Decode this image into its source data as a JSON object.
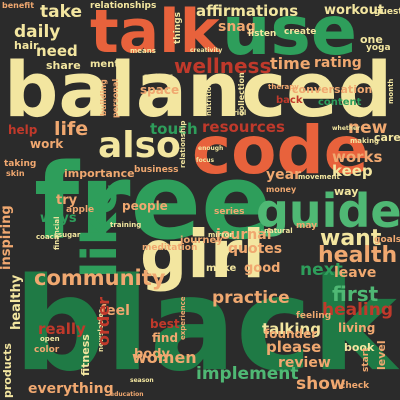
{
  "words": {
    "black": "black",
    "free": "free",
    "balanced": "balanced",
    "talk": "talk",
    "use": "use",
    "code": "code",
    "girl": "girl",
    "guide": "guide",
    "like": "like",
    "also": "also",
    "community": "community",
    "health": "health",
    "want": "want",
    "wellness": "wellness",
    "affirmations": "affirmations",
    "take": "take",
    "daily": "daily",
    "need": "need",
    "life": "life",
    "touch": "touch",
    "resources": "resources",
    "practice": "practice",
    "first": "first",
    "women": "women",
    "implement": "implement",
    "show": "show",
    "everything": "everything",
    "products": "products",
    "healthy": "healthy",
    "journal": "journal",
    "quotes": "quotes",
    "please": "please",
    "review": "review",
    "feel": "feel",
    "really": "really",
    "order": "order",
    "body": "body",
    "talking": "talking",
    "healing": "healing",
    "next": "next",
    "leave": "leave",
    "good": "good",
    "new": "new",
    "works": "works",
    "keep": "keep",
    "year": "year",
    "time": "time",
    "rating": "rating",
    "snag": "snag",
    "workout": "workout",
    "relationships": "relationships",
    "things": "things",
    "benefit": "benefit",
    "mental": "mental",
    "share": "share",
    "hair": "hair",
    "work": "work",
    "help": "help",
    "inspiring": "inspiring",
    "ways": "ways",
    "try": "try",
    "conversation": "conversation",
    "content": "content",
    "founder": "founder",
    "living": "living",
    "book": "book",
    "level": "level",
    "fitness": "fitness",
    "find": "find",
    "best": "best",
    "people": "people",
    "journey": "journey",
    "meditation": "meditation",
    "make": "make",
    "space": "space",
    "one": "one",
    "yoga": "yoga",
    "listen": "listen",
    "create": "create",
    "guest": "guest",
    "way": "way",
    "care": "care",
    "importance": "importance",
    "business": "business",
    "color": "color",
    "apple": "apple",
    "series": "series",
    "may": "may",
    "goals": "goals",
    "check": "check",
    "start": "start",
    "feeling": "feeling",
    "back": "back",
    "therapy": "therapy",
    "money": "money",
    "skin": "skin",
    "taking": "taking",
    "education": "education",
    "newsletter": "newsletter",
    "experience": "experience",
    "personal": "personal",
    "building": "building",
    "collection": "collection",
    "relationship": "relationship",
    "nutrition": "nutrition",
    "month": "month",
    "trial": "trial",
    "partners": "partners",
    "sugar": "sugar",
    "training": "training",
    "mirror": "mirror",
    "natural": "natural",
    "season": "season",
    "open": "open",
    "coach": "coach",
    "movement": "movement",
    "making": "making",
    "whether": "whether",
    "enough": "enough",
    "focus": "focus",
    "financial": "financial",
    "means": "means",
    "creativity": "creativity"
  }
}
